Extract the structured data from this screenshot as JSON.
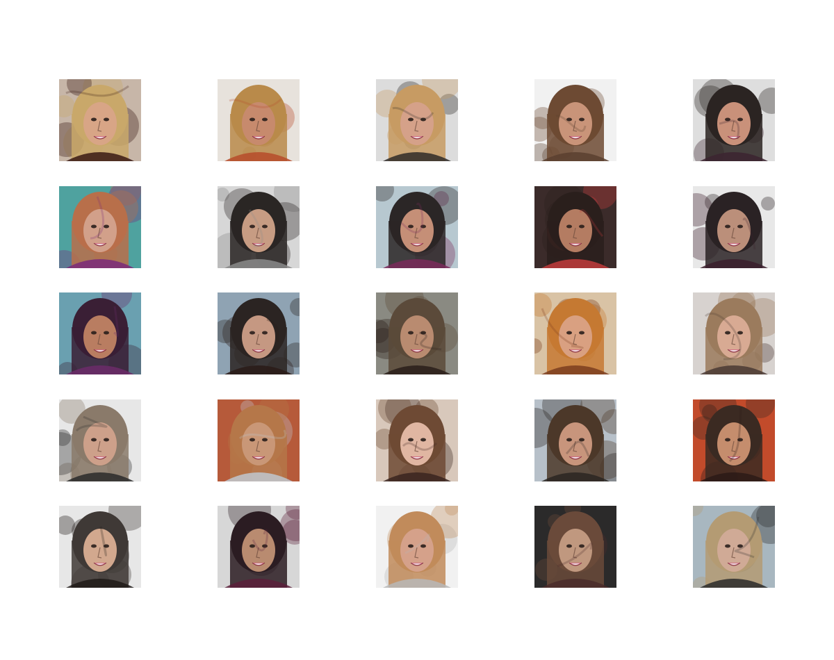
{
  "figure": {
    "background": "#ffffff",
    "rows": 5,
    "cols": 5,
    "images": [
      {
        "bg": "#c7b6a8",
        "hair": "#c9a86a",
        "skin": "#d8a586",
        "accent": "#3a1a14"
      },
      {
        "bg": "#e7e2dc",
        "hair": "#b98a4a",
        "skin": "#c78a6d",
        "accent": "#b64b2a"
      },
      {
        "bg": "#dcdcdc",
        "hair": "#c79b63",
        "skin": "#d5a189",
        "accent": "#2f2a28"
      },
      {
        "bg": "#f1f1f1",
        "hair": "#6d4a33",
        "skin": "#c99479",
        "accent": "#5a402f"
      },
      {
        "bg": "#dedede",
        "hair": "#2b2422",
        "skin": "#c9917a",
        "accent": "#3c2530"
      },
      {
        "bg": "#4fa29f",
        "hair": "#b86f4a",
        "skin": "#d2a08a",
        "accent": "#7a2a7a"
      },
      {
        "bg": "#d7d7d7",
        "hair": "#2a2624",
        "skin": "#c79c83",
        "accent": "#8a8a8a"
      },
      {
        "bg": "#b7c8d0",
        "hair": "#2b2626",
        "skin": "#c58f77",
        "accent": "#7a2a5a"
      },
      {
        "bg": "#3b2b2a",
        "hair": "#2a1f1c",
        "skin": "#b47c62",
        "accent": "#c23c3c"
      },
      {
        "bg": "#e8e8e8",
        "hair": "#2a2224",
        "skin": "#bb8f7a",
        "accent": "#3b1e2b"
      },
      {
        "bg": "#6aa0b0",
        "hair": "#3a1f35",
        "skin": "#b97d61",
        "accent": "#6c2c6a"
      },
      {
        "bg": "#8fa3b3",
        "hair": "#2b2422",
        "skin": "#c59882",
        "accent": "#2a1b18"
      },
      {
        "bg": "#8a8a82",
        "hair": "#5b4a3a",
        "skin": "#b98b70",
        "accent": "#2a1f1a"
      },
      {
        "bg": "#d9c3a5",
        "hair": "#c57932",
        "skin": "#d9a081",
        "accent": "#7b3d1e"
      },
      {
        "bg": "#d7d2cf",
        "hair": "#9b7b5d",
        "skin": "#d8aa93",
        "accent": "#4a3a34"
      },
      {
        "bg": "#e7e7e7",
        "hair": "#8a7a6a",
        "skin": "#cda08a",
        "accent": "#2a2a2a"
      },
      {
        "bg": "#b65a3a",
        "hair": "#b57749",
        "skin": "#c99777",
        "accent": "#c0c7cf"
      },
      {
        "bg": "#d8c8bb",
        "hair": "#6e4a34",
        "skin": "#e0b6a2",
        "accent": "#3a2520"
      },
      {
        "bg": "#b7c0c9",
        "hair": "#4c3829",
        "skin": "#c8957c",
        "accent": "#2a2622"
      },
      {
        "bg": "#c24b2b",
        "hair": "#3b2a22",
        "skin": "#c58d6d",
        "accent": "#2b1a16"
      },
      {
        "bg": "#e7e7e7",
        "hair": "#3f3936",
        "skin": "#d2a88e",
        "accent": "#1f1a18"
      },
      {
        "bg": "#d7d7d7",
        "hair": "#2b1c22",
        "skin": "#b98b70",
        "accent": "#5b1f3a"
      },
      {
        "bg": "#f1f1f1",
        "hair": "#c18b5b",
        "skin": "#d5a18a",
        "accent": "#b7b7b7"
      },
      {
        "bg": "#2b2a2a",
        "hair": "#6a4a3a",
        "skin": "#c0987f",
        "accent": "#4a2c2a"
      },
      {
        "bg": "#a8b7c0",
        "hair": "#b49b73",
        "skin": "#d0aa96",
        "accent": "#2a2a2a"
      }
    ]
  }
}
